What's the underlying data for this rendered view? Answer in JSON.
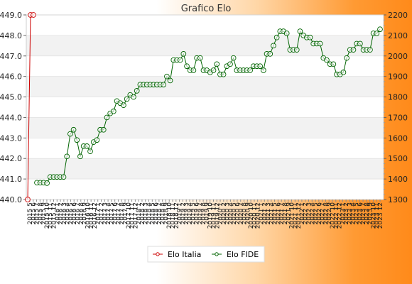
{
  "chart_data": {
    "type": "line",
    "title": "Grafico Elo",
    "y_left": {
      "ticks": [
        "440.0",
        "441.0",
        "442.0",
        "443.0",
        "444.0",
        "445.0",
        "446.0",
        "447.0",
        "448.0",
        "449.0"
      ],
      "range": [
        440,
        449
      ]
    },
    "y_right": {
      "ticks": [
        "1300",
        "1400",
        "1500",
        "1600",
        "1700",
        "1800",
        "1900",
        "2000",
        "2100",
        "2200"
      ],
      "range": [
        1300,
        2200
      ]
    },
    "legend": {
      "position": "bottom",
      "items": [
        "Elo Italia",
        "Elo FIDE"
      ]
    },
    "series": [
      {
        "name": "Elo Italia",
        "color": "#cc0000",
        "axis": "left",
        "values": [
          440.0,
          449.0,
          449.0
        ]
      },
      {
        "name": "Elo FIDE",
        "color": "#006400",
        "axis": "right",
        "values": [
          1382,
          1382,
          1382,
          1380,
          1410,
          1410,
          1410,
          1410,
          1410,
          1510,
          1620,
          1640,
          1590,
          1510,
          1560,
          1560,
          1535,
          1580,
          1590,
          1640,
          1640,
          1700,
          1720,
          1730,
          1780,
          1770,
          1760,
          1790,
          1810,
          1800,
          1830,
          1860,
          1860,
          1860,
          1860,
          1860,
          1860,
          1860,
          1860,
          1900,
          1880,
          1980,
          1980,
          1980,
          2010,
          1950,
          1930,
          1930,
          1990,
          1990,
          1930,
          1930,
          1920,
          1930,
          1960,
          1910,
          1910,
          1950,
          1960,
          1990,
          1930,
          1930,
          1930,
          1930,
          1930,
          1950,
          1950,
          1950,
          1930,
          2010,
          2010,
          2050,
          2090,
          2120,
          2120,
          2110,
          2030,
          2030,
          2030,
          2120,
          2100,
          2090,
          2090,
          2060,
          2060,
          2060,
          1990,
          1980,
          1960,
          1960,
          1910,
          1910,
          1920,
          1990,
          2030,
          2030,
          2060,
          2060,
          2030,
          2030,
          2030,
          2110,
          2110,
          2130
        ]
      }
    ]
  },
  "x_labels": [
    "2015 5",
    "2015 6",
    "2015 7",
    "2015 8",
    "2015 9",
    "2015 10",
    "2015 11",
    "2015 12",
    "2016 1",
    "2016 2",
    "2016 3",
    "2016 4",
    "2016 5",
    "2016 6",
    "2016 7",
    "2016 8",
    "2016 9",
    "2016 10",
    "2016 11",
    "2016 12",
    "2017 1",
    "2017 2",
    "2017 3",
    "2017 4",
    "2017 5",
    "2017 6",
    "2017 7",
    "2017 8",
    "2017 9",
    "2017 10",
    "2017 11",
    "2017 12",
    "2018 1",
    "2018 2",
    "2018 3",
    "2018 4",
    "2018 5",
    "2018 6",
    "2018 7",
    "2018 8",
    "2018 9",
    "2018 10",
    "2018 11",
    "2018 12",
    "2019 1",
    "2019 2",
    "2019 3",
    "2019 4",
    "2019 5",
    "2019 6",
    "2019 7",
    "2019 8",
    "2019 9",
    "2019 10",
    "2019 11",
    "2019 12",
    "2020 1",
    "2020 2",
    "2020 3",
    "2020 4",
    "2020 5",
    "2020 6",
    "2020 7",
    "2020 8",
    "2020 9",
    "2020 10",
    "2020 11",
    "2020 12",
    "2021 1",
    "2021 2",
    "2021 3",
    "2021 4",
    "2021 5",
    "2021 6",
    "2021 7",
    "2021 8",
    "2021 9",
    "2021 10",
    "2021 11",
    "2021 12",
    "2022 1",
    "2022 2",
    "2022 3",
    "2022 4",
    "2022 5",
    "2022 6",
    "2022 7",
    "2022 8",
    "2022 9",
    "2022 10",
    "2022 11",
    "2022 12",
    "2023 1",
    "2023 2",
    "2023 3",
    "2023 4",
    "2023 5",
    "2023 6",
    "2023 7",
    "2023 8",
    "2023 9",
    "2023 10",
    "2023 11",
    "2023 12"
  ]
}
